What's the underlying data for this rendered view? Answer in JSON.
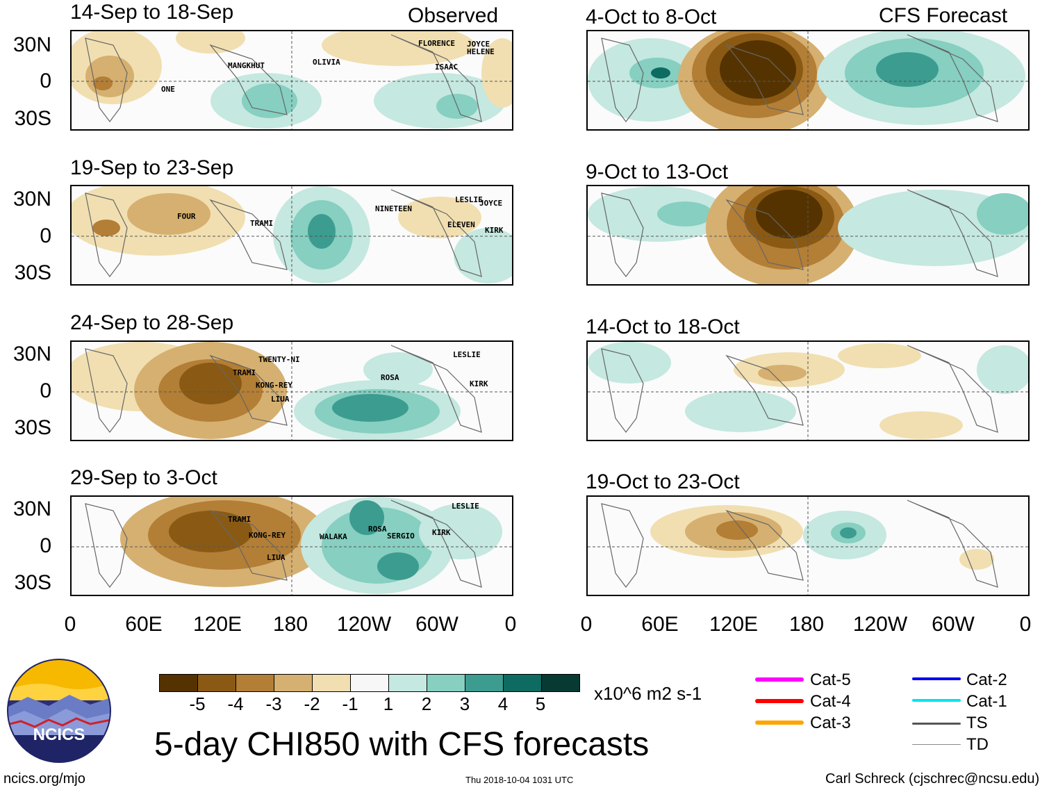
{
  "observed_label": "Observed",
  "forecast_label": "CFS Forecast",
  "y_ticks": [
    "30N",
    "0",
    "30S"
  ],
  "x_ticks": [
    "0",
    "60E",
    "120E",
    "180",
    "120W",
    "60W",
    "0"
  ],
  "observed_panels": [
    {
      "title": "14-Sep to 18-Sep",
      "storms": [
        "MANGKHUT",
        "OLIVIA",
        "FLORENCE",
        "JOYCE",
        "HELENE",
        "ISAAC",
        "ONE"
      ]
    },
    {
      "title": "19-Sep to 23-Sep",
      "storms": [
        "FOUR",
        "TRAMI",
        "NINETEEN",
        "LESLIE",
        "JOYCE",
        "ELEVEN",
        "KIRK"
      ]
    },
    {
      "title": "24-Sep to 28-Sep",
      "storms": [
        "TWENTY-NI",
        "TRAMI",
        "KONG-REY",
        "LIUA",
        "ROSA",
        "LESLIE",
        "KIRK"
      ]
    },
    {
      "title": "29-Sep to 3-Oct",
      "storms": [
        "TRAMI",
        "KONG-REY",
        "LIUA",
        "WALAKA",
        "ROSA",
        "SERGIO",
        "KIRK",
        "LESLIE"
      ]
    }
  ],
  "forecast_panels": [
    {
      "title": "4-Oct to 8-Oct"
    },
    {
      "title": "9-Oct to 13-Oct"
    },
    {
      "title": "14-Oct to 18-Oct"
    },
    {
      "title": "19-Oct to 23-Oct"
    }
  ],
  "colorbar": {
    "ticks": [
      "-5",
      "-4",
      "-3",
      "-2",
      "-1",
      "1",
      "2",
      "3",
      "4",
      "5"
    ],
    "colors": [
      "#553300",
      "#8a5a14",
      "#b37e35",
      "#d6b070",
      "#f1dfb1",
      "#f7f7f7",
      "#c5e8e0",
      "#86cfc1",
      "#3c9c90",
      "#0e6b61",
      "#063a33"
    ],
    "unit": "x10^6 m2 s-1"
  },
  "legend": [
    {
      "label": "Cat-5",
      "color": "#ff00ff"
    },
    {
      "label": "Cat-4",
      "color": "#ff0000"
    },
    {
      "label": "Cat-3",
      "color": "#ffa500"
    },
    {
      "label": "Cat-2",
      "color": "#0000ee"
    },
    {
      "label": "Cat-1",
      "color": "#00e5ee"
    },
    {
      "label": "TS",
      "color": "#555555"
    },
    {
      "label": "TD",
      "color": "#888888"
    }
  ],
  "logo_text": "NCICS",
  "main_title": "5-day CHI850 with CFS forecasts",
  "footer": {
    "left": "ncics.org/mjo",
    "center": "Thu 2018-10-04 1031 UTC",
    "right": "Carl Schreck (cjschrec@ncsu.edu)"
  }
}
